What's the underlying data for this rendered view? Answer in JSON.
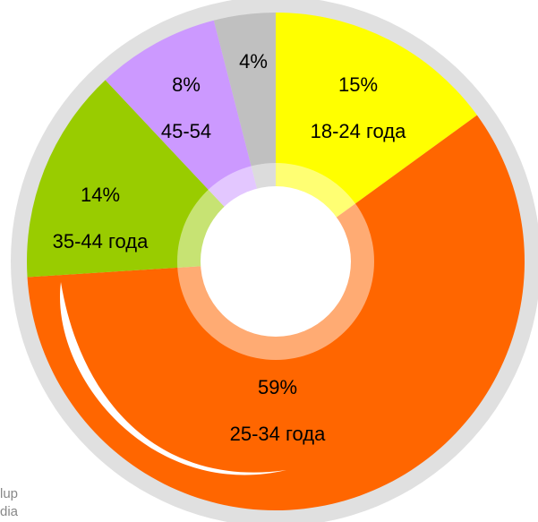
{
  "chart_data": {
    "type": "donut",
    "categories": [
      "18-24 года",
      "25-34 года",
      "35-44 года",
      "45-54",
      null
    ],
    "values": [
      15,
      59,
      14,
      8,
      4
    ],
    "value_labels": [
      "15%",
      "59%",
      "14%",
      "8%",
      "4%"
    ],
    "colors": [
      "#ffff00",
      "#ff6600",
      "#99cc00",
      "#cc99ff",
      "#c0c0c0"
    ]
  },
  "watermark": [
    "lup",
    "dia"
  ]
}
